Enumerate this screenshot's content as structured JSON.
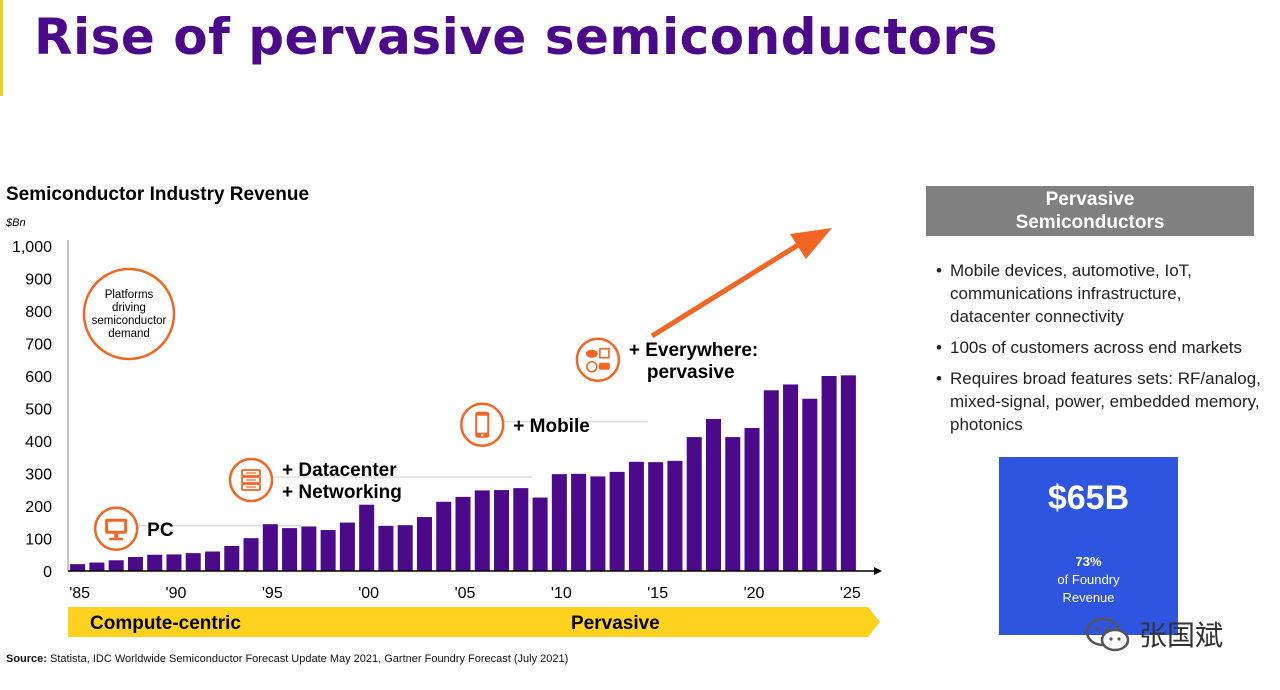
{
  "slide": {
    "title": "Rise of pervasive semiconductors",
    "source_label": "Source:",
    "source_text": "Statista, IDC Worldwide Semiconductor Forecast Update May 2021, Gartner Foundry Forecast (July 2021)"
  },
  "panel": {
    "header_line1": "Pervasive",
    "header_line2": "Semiconductors",
    "bullets": [
      "Mobile devices, automotive, IoT, communications infrastructure, datacenter connectivity",
      "100s of customers across end markets",
      "Requires broad features sets: RF/analog, mixed-signal, power, embedded memory, photonics"
    ]
  },
  "revenue_box": {
    "value": "$65B",
    "percent": "73%",
    "caption_line1": "of Foundry",
    "caption_line2": "Revenue"
  },
  "watermark": {
    "text": "张国斌",
    "icon": "wechat-icon"
  },
  "colors": {
    "title": "#4b0a8a",
    "bar": "#4b0a8a",
    "accent": "#f26522",
    "band": "#ffd21f",
    "panel": "#808080",
    "box": "#2f55e0"
  },
  "chart_data": {
    "type": "bar",
    "title": "Semiconductor Industry Revenue",
    "unit": "$Bn",
    "ylim": [
      0,
      1000
    ],
    "yticks": [
      "0",
      "100",
      "200",
      "300",
      "400",
      "500",
      "600",
      "700",
      "800",
      "900",
      "1,000"
    ],
    "years": [
      1985,
      1986,
      1987,
      1988,
      1989,
      1990,
      1991,
      1992,
      1993,
      1994,
      1995,
      1996,
      1997,
      1998,
      1999,
      2000,
      2001,
      2002,
      2003,
      2004,
      2005,
      2006,
      2007,
      2008,
      2009,
      2010,
      2011,
      2012,
      2013,
      2014,
      2015,
      2016,
      2017,
      2018,
      2019,
      2020,
      2021,
      2022,
      2023,
      2024,
      2025
    ],
    "values": [
      21,
      26,
      33,
      43,
      50,
      51,
      55,
      60,
      77,
      101,
      144,
      132,
      137,
      126,
      149,
      204,
      139,
      141,
      166,
      213,
      228,
      248,
      249,
      255,
      226,
      298,
      299,
      291,
      305,
      336,
      335,
      339,
      412,
      468,
      412,
      440,
      556,
      574,
      530,
      600,
      602
    ],
    "x_tick_labels": [
      "'85",
      "'90",
      "'95",
      "'00",
      "'05",
      "'10",
      "'15",
      "'20",
      "'25"
    ],
    "x_tick_years": [
      1985,
      1990,
      1995,
      2000,
      2005,
      2010,
      2015,
      2020,
      2025
    ],
    "platform_legend": [
      "Platforms",
      "driving",
      "semiconductor",
      "demand"
    ],
    "platforms": [
      {
        "icon": "monitor-icon",
        "lines": [
          "PC"
        ],
        "year": 1987.0,
        "level": 130
      },
      {
        "icon": "server-icon",
        "lines": [
          "+ Datacenter",
          "+ Networking"
        ],
        "year": 1994.0,
        "level": 280
      },
      {
        "icon": "smartphone-icon",
        "lines": [
          "+ Mobile"
        ],
        "year": 2006.0,
        "level": 450
      },
      {
        "icon": "iot-devices-icon",
        "lines": [
          "+ Everywhere:",
          "pervasive"
        ],
        "year": 2012.0,
        "level": 650
      }
    ],
    "eras": [
      "Compute-centric",
      "Pervasive"
    ]
  }
}
